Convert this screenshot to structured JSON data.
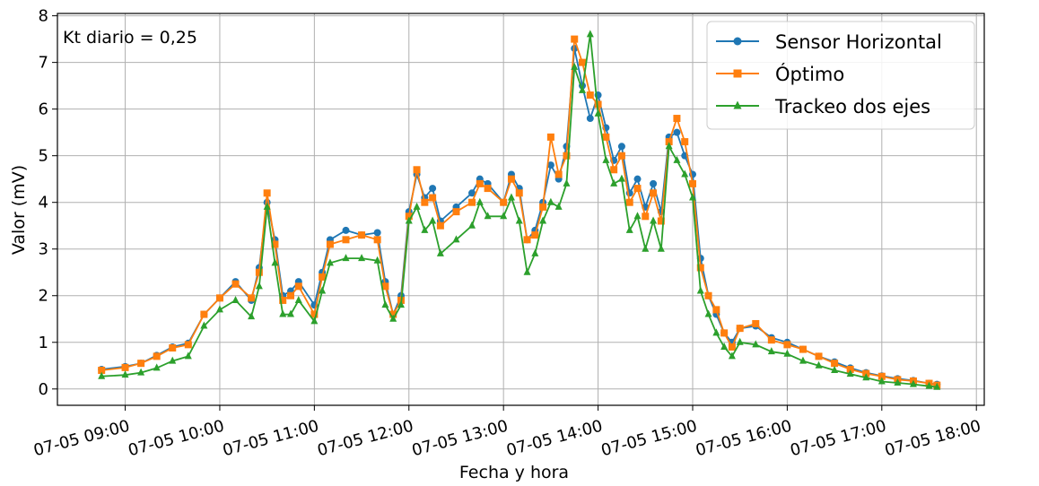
{
  "chart_data": {
    "type": "line",
    "title": "",
    "xlabel": "Fecha y hora",
    "ylabel": "Valor (mV)",
    "annotation": "Kt diario = 0,25",
    "xlim": [
      "07-05 08:17",
      "07-05 18:05"
    ],
    "ylim": [
      -0.35,
      8.05
    ],
    "grid": true,
    "legend_position": "top-right",
    "x_ticks": [
      "07-05 09:00",
      "07-05 10:00",
      "07-05 11:00",
      "07-05 12:00",
      "07-05 13:00",
      "07-05 14:00",
      "07-05 15:00",
      "07-05 16:00",
      "07-05 17:00",
      "07-05 18:00"
    ],
    "y_ticks": [
      "0",
      "1",
      "2",
      "3",
      "4",
      "5",
      "6",
      "7",
      "8"
    ],
    "x": [
      "07-05 08:45",
      "07-05 09:00",
      "07-05 09:10",
      "07-05 09:20",
      "07-05 09:30",
      "07-05 09:40",
      "07-05 09:50",
      "07-05 10:00",
      "07-05 10:10",
      "07-05 10:20",
      "07-05 10:25",
      "07-05 10:30",
      "07-05 10:35",
      "07-05 10:40",
      "07-05 10:45",
      "07-05 10:50",
      "07-05 11:00",
      "07-05 11:05",
      "07-05 11:10",
      "07-05 11:20",
      "07-05 11:30",
      "07-05 11:40",
      "07-05 11:45",
      "07-05 11:50",
      "07-05 11:55",
      "07-05 12:00",
      "07-05 12:05",
      "07-05 12:10",
      "07-05 12:15",
      "07-05 12:20",
      "07-05 12:30",
      "07-05 12:40",
      "07-05 12:45",
      "07-05 12:50",
      "07-05 13:00",
      "07-05 13:05",
      "07-05 13:10",
      "07-05 13:15",
      "07-05 13:20",
      "07-05 13:25",
      "07-05 13:30",
      "07-05 13:35",
      "07-05 13:40",
      "07-05 13:45",
      "07-05 13:50",
      "07-05 13:55",
      "07-05 14:00",
      "07-05 14:05",
      "07-05 14:10",
      "07-05 14:15",
      "07-05 14:20",
      "07-05 14:25",
      "07-05 14:30",
      "07-05 14:35",
      "07-05 14:40",
      "07-05 14:45",
      "07-05 14:50",
      "07-05 14:55",
      "07-05 15:00",
      "07-05 15:05",
      "07-05 15:10",
      "07-05 15:15",
      "07-05 15:20",
      "07-05 15:25",
      "07-05 15:30",
      "07-05 15:40",
      "07-05 15:50",
      "07-05 16:00",
      "07-05 16:10",
      "07-05 16:20",
      "07-05 16:30",
      "07-05 16:40",
      "07-05 16:50",
      "07-05 17:00",
      "07-05 17:10",
      "07-05 17:20",
      "07-05 17:30",
      "07-05 17:35"
    ],
    "series": [
      {
        "name": "Sensor Horizontal",
        "color": "#1f77b4",
        "marker": "circle",
        "values": [
          0.42,
          0.48,
          0.55,
          0.72,
          0.9,
          0.98,
          1.6,
          1.95,
          2.3,
          1.9,
          2.6,
          4.0,
          3.2,
          2.0,
          2.1,
          2.3,
          1.8,
          2.5,
          3.2,
          3.4,
          3.3,
          3.35,
          2.3,
          1.6,
          2.0,
          3.8,
          4.6,
          4.1,
          4.3,
          3.6,
          3.9,
          4.2,
          4.5,
          4.4,
          4.0,
          4.6,
          4.3,
          3.2,
          3.4,
          4.0,
          4.8,
          4.5,
          5.2,
          7.3,
          6.5,
          5.8,
          6.3,
          5.6,
          4.9,
          5.2,
          4.2,
          4.5,
          3.9,
          4.4,
          3.8,
          5.4,
          5.5,
          5.0,
          4.6,
          2.8,
          2.0,
          1.6,
          1.2,
          1.0,
          1.3,
          1.35,
          1.1,
          1.0,
          0.85,
          0.7,
          0.58,
          0.45,
          0.35,
          0.28,
          0.22,
          0.18,
          0.12,
          0.1
        ]
      },
      {
        "name": "Óptimo",
        "color": "#ff7f0e",
        "marker": "square",
        "values": [
          0.4,
          0.46,
          0.55,
          0.7,
          0.88,
          0.95,
          1.6,
          1.95,
          2.25,
          1.95,
          2.5,
          4.2,
          3.1,
          1.9,
          2.0,
          2.2,
          1.6,
          2.4,
          3.1,
          3.2,
          3.3,
          3.2,
          2.2,
          1.6,
          1.9,
          3.7,
          4.7,
          4.0,
          4.1,
          3.5,
          3.8,
          4.0,
          4.4,
          4.3,
          4.0,
          4.5,
          4.2,
          3.2,
          3.3,
          3.9,
          5.4,
          4.6,
          5.0,
          7.5,
          7.0,
          6.3,
          6.1,
          5.4,
          4.7,
          5.0,
          4.0,
          4.3,
          3.7,
          4.2,
          3.6,
          5.3,
          5.8,
          5.3,
          4.4,
          2.6,
          2.0,
          1.7,
          1.2,
          0.9,
          1.3,
          1.4,
          1.05,
          0.95,
          0.85,
          0.7,
          0.55,
          0.42,
          0.33,
          0.27,
          0.2,
          0.17,
          0.12,
          0.08
        ]
      },
      {
        "name": "Trackeo dos ejes",
        "color": "#2ca02c",
        "marker": "triangle",
        "values": [
          0.27,
          0.3,
          0.35,
          0.45,
          0.6,
          0.7,
          1.35,
          1.7,
          1.9,
          1.55,
          2.2,
          3.9,
          2.7,
          1.6,
          1.6,
          1.9,
          1.45,
          2.1,
          2.7,
          2.8,
          2.8,
          2.75,
          1.8,
          1.5,
          1.8,
          3.6,
          3.9,
          3.4,
          3.6,
          2.9,
          3.2,
          3.5,
          4.0,
          3.7,
          3.7,
          4.1,
          3.6,
          2.5,
          2.9,
          3.6,
          4.0,
          3.9,
          4.4,
          6.9,
          6.4,
          7.6,
          5.9,
          4.9,
          4.4,
          4.5,
          3.4,
          3.7,
          3.0,
          3.6,
          3.0,
          5.2,
          4.9,
          4.6,
          4.1,
          2.1,
          1.6,
          1.2,
          0.9,
          0.7,
          1.0,
          0.95,
          0.8,
          0.75,
          0.6,
          0.5,
          0.4,
          0.32,
          0.24,
          0.16,
          0.13,
          0.1,
          0.06,
          0.04
        ]
      }
    ]
  }
}
